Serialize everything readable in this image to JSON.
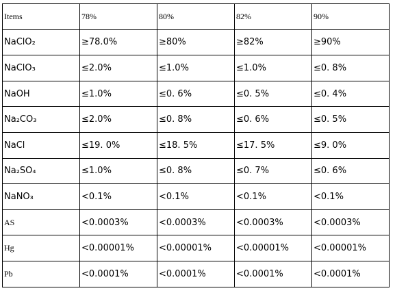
{
  "table": {
    "header": [
      "Items",
      "78%",
      "80%",
      "82%",
      "90%"
    ],
    "rows": [
      [
        "NaClO₂",
        "≥78.0%",
        "≥80%",
        "≥82%",
        "≥90%"
      ],
      [
        "NaClO₃",
        "≤2.0%",
        "≤1.0%",
        "≤1.0%",
        "≤0. 8%"
      ],
      [
        "NaOH",
        "≤1.0%",
        "≤0. 6%",
        "≤0. 5%",
        "≤0. 4%"
      ],
      [
        "Na₂CO₃",
        "≤2.0%",
        "≤0. 8%",
        "≤0. 6%",
        "≤0. 5%"
      ],
      [
        "NaCl",
        "≤19. 0%",
        "≤18. 5%",
        "≤17. 5%",
        "≤9. 0%"
      ],
      [
        "Na₂SO₄",
        "≤1.0%",
        "≤0. 8%",
        "≤0. 7%",
        "≤0. 6%"
      ],
      [
        "NaNO₃",
        "<0.1%",
        "<0.1%",
        "<0.1%",
        "<0.1%"
      ],
      [
        "AS",
        "<0.0003%",
        "<0.0003%",
        "<0.0003%",
        "<0.0003%"
      ],
      [
        "Hg",
        "<0.00001%",
        "<0.00001%",
        "<0.00001%",
        "<0.00001%"
      ],
      [
        "Pb",
        "<0.0001%",
        "<0.0001%",
        "<0.0001%",
        "<0.0001%"
      ]
    ]
  }
}
